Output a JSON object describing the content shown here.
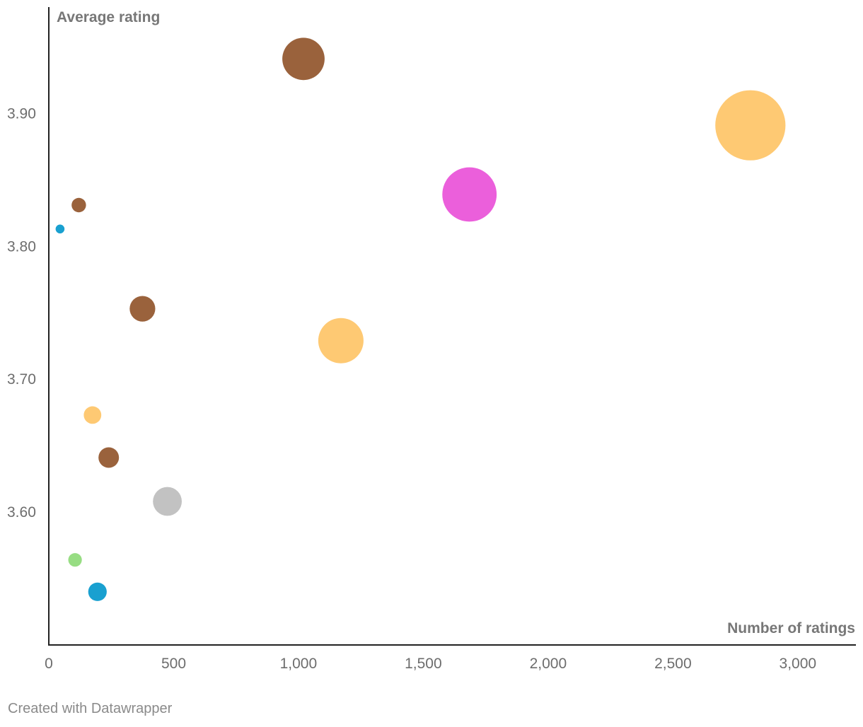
{
  "chart_data": {
    "type": "scatter",
    "bubble": true,
    "xlabel": "Number of ratings",
    "ylabel": "Average rating",
    "xlim": [
      0,
      3230
    ],
    "ylim": [
      3.5,
      3.98
    ],
    "x_ticks": [
      0,
      500,
      1000,
      1500,
      2000,
      2500,
      3000
    ],
    "x_tick_labels": [
      "0",
      "500",
      "1,000",
      "1,500",
      "2,000",
      "2,500",
      "3,000"
    ],
    "y_ticks": [
      3.6,
      3.7,
      3.8,
      3.9
    ],
    "y_tick_labels": [
      "3.60",
      "3.70",
      "3.80",
      "3.90"
    ],
    "grid": false,
    "points": [
      {
        "x": 1020,
        "y": 3.941,
        "size": 1020,
        "color": "#9a623c"
      },
      {
        "x": 2810,
        "y": 3.891,
        "size": 2810,
        "color": "#fec973"
      },
      {
        "x": 1685,
        "y": 3.839,
        "size": 1685,
        "color": "#eb5fdb"
      },
      {
        "x": 120,
        "y": 3.831,
        "size": 120,
        "color": "#9a623c"
      },
      {
        "x": 45,
        "y": 3.813,
        "size": 45,
        "color": "#19a0d0"
      },
      {
        "x": 375,
        "y": 3.753,
        "size": 375,
        "color": "#9a623c"
      },
      {
        "x": 1170,
        "y": 3.729,
        "size": 1170,
        "color": "#fec973"
      },
      {
        "x": 175,
        "y": 3.673,
        "size": 175,
        "color": "#fec973"
      },
      {
        "x": 240,
        "y": 3.641,
        "size": 240,
        "color": "#9a623c"
      },
      {
        "x": 475,
        "y": 3.608,
        "size": 475,
        "color": "#c2c2c2"
      },
      {
        "x": 105,
        "y": 3.564,
        "size": 105,
        "color": "#97dd83"
      },
      {
        "x": 195,
        "y": 3.54,
        "size": 195,
        "color": "#19a0d0"
      }
    ]
  },
  "footer": {
    "credit": "Created with Datawrapper"
  }
}
